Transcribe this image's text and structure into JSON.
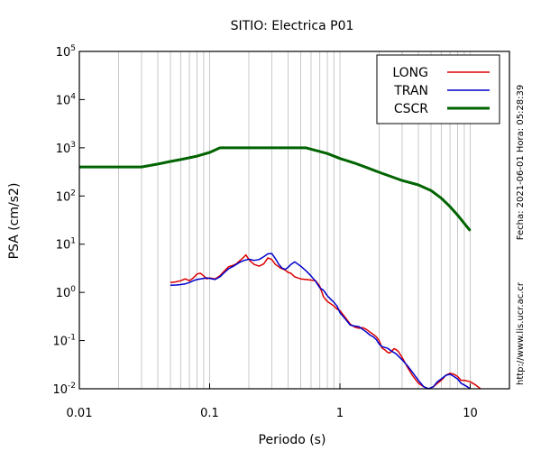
{
  "chart_data": {
    "type": "line",
    "title": "SITIO: Electrica P01",
    "xlabel": "Periodo (s)",
    "ylabel": "PSA (cm/s2)",
    "xscale": "log",
    "yscale": "log",
    "xlim": [
      0.01,
      20
    ],
    "ylim": [
      0.01,
      100000
    ],
    "grid": "vertical minor+major",
    "legend_position": "top-right",
    "x_tick_labels": [
      "0.01",
      "0.1",
      "1",
      "10"
    ],
    "x_tick_values": [
      0.01,
      0.1,
      1,
      10
    ],
    "y_tick_labels": [
      {
        "base": "10",
        "exp": "-2",
        "value": 0.01
      },
      {
        "base": "10",
        "exp": "-1",
        "value": 0.1
      },
      {
        "base": "10",
        "exp": "0",
        "value": 1
      },
      {
        "base": "10",
        "exp": "1",
        "value": 10
      },
      {
        "base": "10",
        "exp": "2",
        "value": 100
      },
      {
        "base": "10",
        "exp": "3",
        "value": 1000
      },
      {
        "base": "10",
        "exp": "4",
        "value": 10000
      },
      {
        "base": "10",
        "exp": "5",
        "value": 100000
      }
    ],
    "series": [
      {
        "name": "LONG",
        "color": "#dd0000",
        "points": [
          [
            0.05,
            1.6
          ],
          [
            0.055,
            1.65
          ],
          [
            0.06,
            1.75
          ],
          [
            0.065,
            1.9
          ],
          [
            0.07,
            1.75
          ],
          [
            0.075,
            2.0
          ],
          [
            0.08,
            2.4
          ],
          [
            0.085,
            2.5
          ],
          [
            0.09,
            2.2
          ],
          [
            0.095,
            1.9
          ],
          [
            0.1,
            2.0
          ],
          [
            0.11,
            1.9
          ],
          [
            0.12,
            2.2
          ],
          [
            0.13,
            2.8
          ],
          [
            0.14,
            3.4
          ],
          [
            0.15,
            3.6
          ],
          [
            0.16,
            3.9
          ],
          [
            0.17,
            4.5
          ],
          [
            0.18,
            5.2
          ],
          [
            0.19,
            6.0
          ],
          [
            0.2,
            4.8
          ],
          [
            0.21,
            4.2
          ],
          [
            0.22,
            3.8
          ],
          [
            0.24,
            3.5
          ],
          [
            0.26,
            3.9
          ],
          [
            0.28,
            5.2
          ],
          [
            0.3,
            4.8
          ],
          [
            0.32,
            3.8
          ],
          [
            0.35,
            3.2
          ],
          [
            0.38,
            2.9
          ],
          [
            0.4,
            2.6
          ],
          [
            0.42,
            2.5
          ],
          [
            0.45,
            2.1
          ],
          [
            0.5,
            1.9
          ],
          [
            0.55,
            1.85
          ],
          [
            0.6,
            1.8
          ],
          [
            0.65,
            1.75
          ],
          [
            0.7,
            1.35
          ],
          [
            0.75,
            0.8
          ],
          [
            0.8,
            0.65
          ],
          [
            0.85,
            0.58
          ],
          [
            0.9,
            0.52
          ],
          [
            0.95,
            0.45
          ],
          [
            1.0,
            0.42
          ],
          [
            1.1,
            0.3
          ],
          [
            1.2,
            0.22
          ],
          [
            1.3,
            0.19
          ],
          [
            1.4,
            0.18
          ],
          [
            1.5,
            0.185
          ],
          [
            1.6,
            0.17
          ],
          [
            1.7,
            0.15
          ],
          [
            1.8,
            0.135
          ],
          [
            1.9,
            0.12
          ],
          [
            2.0,
            0.1
          ],
          [
            2.1,
            0.07
          ],
          [
            2.2,
            0.065
          ],
          [
            2.3,
            0.058
          ],
          [
            2.4,
            0.055
          ],
          [
            2.5,
            0.06
          ],
          [
            2.6,
            0.068
          ],
          [
            2.7,
            0.065
          ],
          [
            2.8,
            0.06
          ],
          [
            3.0,
            0.045
          ],
          [
            3.3,
            0.028
          ],
          [
            3.6,
            0.019
          ],
          [
            4.0,
            0.013
          ],
          [
            4.4,
            0.011
          ],
          [
            4.8,
            0.0098
          ],
          [
            5.2,
            0.011
          ],
          [
            5.6,
            0.013
          ],
          [
            6.0,
            0.015
          ],
          [
            6.5,
            0.019
          ],
          [
            7.0,
            0.021
          ],
          [
            7.5,
            0.02
          ],
          [
            8.0,
            0.018
          ],
          [
            8.5,
            0.015
          ],
          [
            9.0,
            0.015
          ],
          [
            10.0,
            0.014
          ],
          [
            11.0,
            0.012
          ],
          [
            12.0,
            0.0095
          ]
        ]
      },
      {
        "name": "TRAN",
        "color": "#0000cc",
        "points": [
          [
            0.05,
            1.4
          ],
          [
            0.055,
            1.42
          ],
          [
            0.06,
            1.45
          ],
          [
            0.065,
            1.5
          ],
          [
            0.07,
            1.6
          ],
          [
            0.075,
            1.75
          ],
          [
            0.08,
            1.85
          ],
          [
            0.085,
            1.9
          ],
          [
            0.09,
            1.95
          ],
          [
            0.095,
            2.0
          ],
          [
            0.1,
            1.95
          ],
          [
            0.11,
            1.85
          ],
          [
            0.12,
            2.1
          ],
          [
            0.13,
            2.6
          ],
          [
            0.14,
            3.1
          ],
          [
            0.15,
            3.4
          ],
          [
            0.16,
            3.8
          ],
          [
            0.17,
            4.2
          ],
          [
            0.18,
            4.5
          ],
          [
            0.19,
            4.7
          ],
          [
            0.2,
            4.9
          ],
          [
            0.22,
            4.6
          ],
          [
            0.24,
            4.8
          ],
          [
            0.26,
            5.5
          ],
          [
            0.28,
            6.3
          ],
          [
            0.3,
            6.4
          ],
          [
            0.32,
            5.0
          ],
          [
            0.34,
            3.8
          ],
          [
            0.36,
            3.2
          ],
          [
            0.38,
            3.0
          ],
          [
            0.4,
            3.3
          ],
          [
            0.42,
            3.8
          ],
          [
            0.45,
            4.3
          ],
          [
            0.5,
            3.5
          ],
          [
            0.55,
            2.8
          ],
          [
            0.6,
            2.2
          ],
          [
            0.65,
            1.7
          ],
          [
            0.7,
            1.25
          ],
          [
            0.75,
            1.1
          ],
          [
            0.8,
            0.85
          ],
          [
            0.85,
            0.72
          ],
          [
            0.9,
            0.62
          ],
          [
            0.95,
            0.52
          ],
          [
            1.0,
            0.38
          ],
          [
            1.1,
            0.28
          ],
          [
            1.2,
            0.21
          ],
          [
            1.3,
            0.2
          ],
          [
            1.4,
            0.195
          ],
          [
            1.5,
            0.17
          ],
          [
            1.6,
            0.15
          ],
          [
            1.7,
            0.13
          ],
          [
            1.8,
            0.12
          ],
          [
            1.9,
            0.105
          ],
          [
            2.0,
            0.085
          ],
          [
            2.1,
            0.075
          ],
          [
            2.2,
            0.072
          ],
          [
            2.3,
            0.07
          ],
          [
            2.5,
            0.06
          ],
          [
            2.7,
            0.053
          ],
          [
            3.0,
            0.04
          ],
          [
            3.3,
            0.03
          ],
          [
            3.6,
            0.022
          ],
          [
            4.0,
            0.015
          ],
          [
            4.4,
            0.011
          ],
          [
            4.8,
            0.0095
          ],
          [
            5.2,
            0.011
          ],
          [
            5.6,
            0.014
          ],
          [
            6.0,
            0.016
          ],
          [
            6.5,
            0.019
          ],
          [
            7.0,
            0.02
          ],
          [
            7.5,
            0.018
          ],
          [
            8.0,
            0.016
          ],
          [
            8.5,
            0.013
          ],
          [
            9.0,
            0.012
          ],
          [
            9.5,
            0.011
          ],
          [
            10.0,
            0.0095
          ]
        ]
      },
      {
        "name": "CSCR",
        "color": "#006400",
        "points": [
          [
            0.01,
            400
          ],
          [
            0.03,
            400
          ],
          [
            0.04,
            460
          ],
          [
            0.05,
            520
          ],
          [
            0.06,
            570
          ],
          [
            0.07,
            620
          ],
          [
            0.08,
            670
          ],
          [
            0.1,
            800
          ],
          [
            0.12,
            1000
          ],
          [
            0.15,
            1000
          ],
          [
            0.2,
            1000
          ],
          [
            0.3,
            1000
          ],
          [
            0.4,
            1000
          ],
          [
            0.5,
            1000
          ],
          [
            0.55,
            1000
          ],
          [
            0.7,
            840
          ],
          [
            0.8,
            760
          ],
          [
            1.0,
            600
          ],
          [
            1.3,
            480
          ],
          [
            1.6,
            390
          ],
          [
            2.0,
            310
          ],
          [
            2.5,
            250
          ],
          [
            3.0,
            210
          ],
          [
            4.0,
            170
          ],
          [
            5.0,
            130
          ],
          [
            6.0,
            90
          ],
          [
            7.0,
            60
          ],
          [
            8.0,
            40
          ],
          [
            9.0,
            27
          ],
          [
            10.0,
            19
          ]
        ]
      }
    ]
  },
  "side_text": {
    "date": "Fecha: 2021-06-01  Hora: 05:28:39",
    "url": "http://www.lis.ucr.ac.cr"
  }
}
